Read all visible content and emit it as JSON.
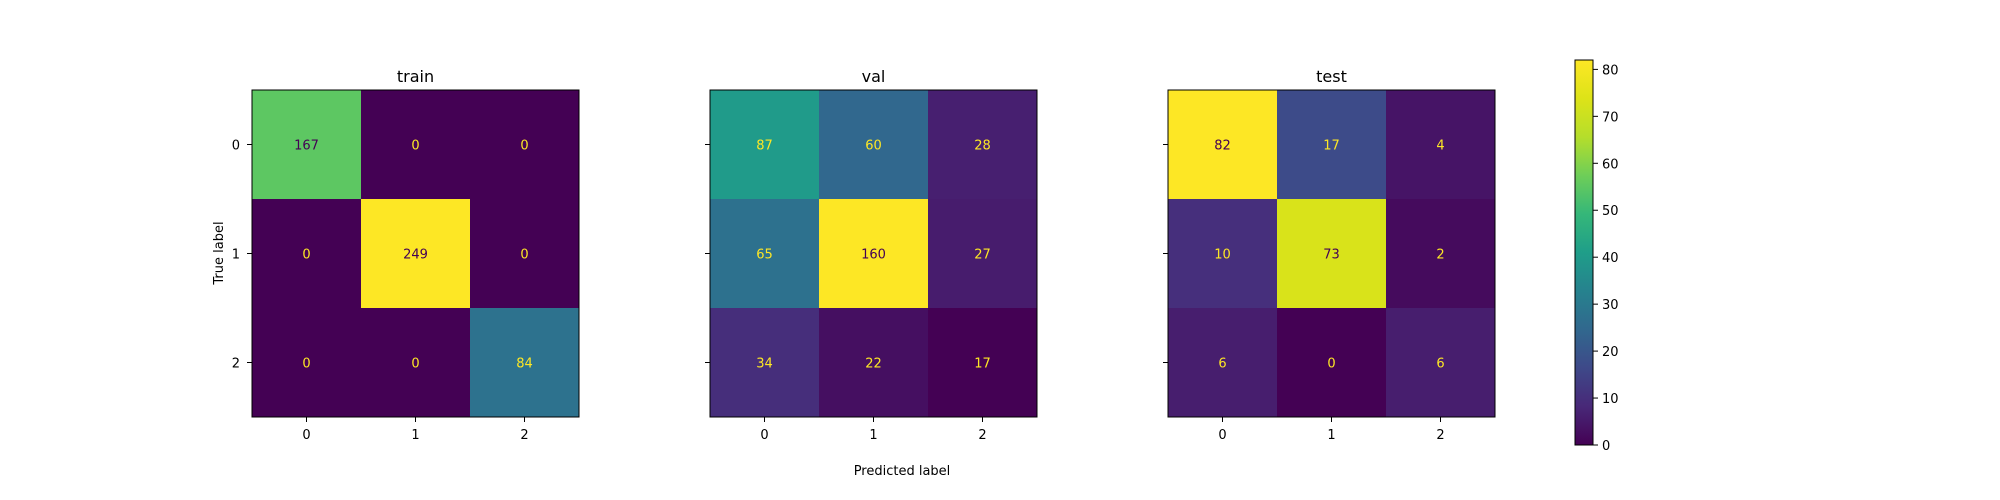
{
  "chart_data": {
    "type": "heatmap",
    "colormap": "viridis",
    "xlabel": "Predicted label",
    "ylabel": "True label",
    "x_categories": [
      "0",
      "1",
      "2"
    ],
    "y_categories": [
      "0",
      "1",
      "2"
    ],
    "colorbar": {
      "range": [
        0,
        82
      ],
      "ticks": [
        "0",
        "10",
        "20",
        "30",
        "40",
        "50",
        "60",
        "70",
        "80"
      ]
    },
    "panels": [
      {
        "title": "train",
        "matrix": [
          [
            167,
            0,
            0
          ],
          [
            0,
            249,
            0
          ],
          [
            0,
            0,
            84
          ]
        ]
      },
      {
        "title": "val",
        "matrix": [
          [
            87,
            60,
            28
          ],
          [
            65,
            160,
            27
          ],
          [
            34,
            22,
            17
          ]
        ]
      },
      {
        "title": "test",
        "matrix": [
          [
            82,
            17,
            4
          ],
          [
            10,
            73,
            2
          ],
          [
            6,
            0,
            6
          ]
        ]
      }
    ]
  }
}
